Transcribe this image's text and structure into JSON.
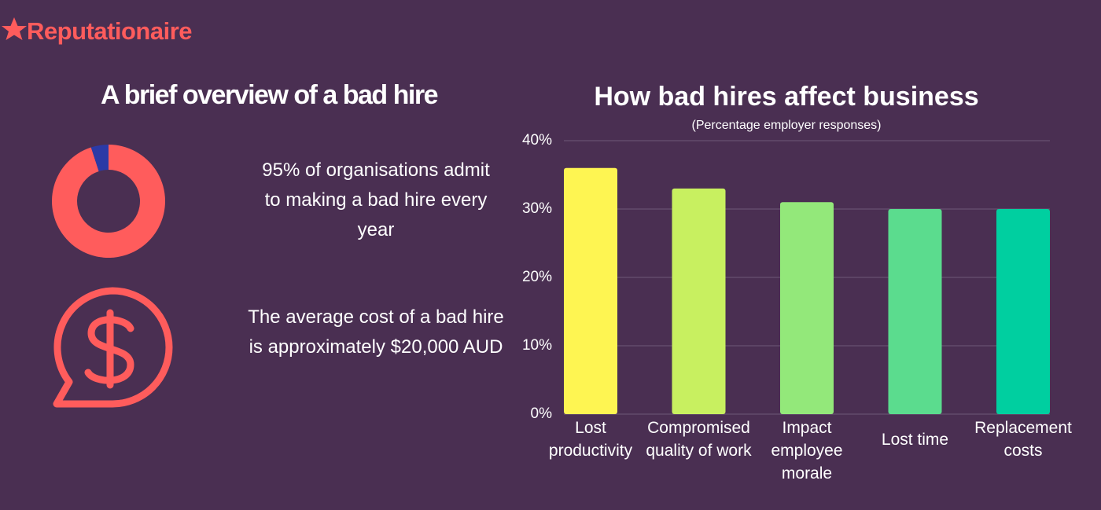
{
  "logo": "Reputationaire",
  "left_title": "A brief overview of a bad hire",
  "facts": [
    "95% of organisations admit to making a bad hire every year",
    "The average cost of a bad hire is approximately $20,000 AUD"
  ],
  "chart_data": [
    {
      "type": "donut",
      "values": [
        95,
        5
      ],
      "colors": [
        "#ff5c5c",
        "#2b3aa6"
      ]
    },
    {
      "type": "bar",
      "title": "How bad hires affect business",
      "subtitle": "(Percentage employer responses)",
      "categories": [
        "Lost productivity",
        "Compromised quality of work",
        "Impact employee morale",
        "Lost time",
        "Replacement costs"
      ],
      "values": [
        36,
        33,
        31,
        30,
        30
      ],
      "colors": [
        "#fef552",
        "#c8f060",
        "#93e87a",
        "#5bdc8e",
        "#00cfa0"
      ],
      "ylim": [
        0,
        40
      ],
      "yticks": [
        {
          "value": 0,
          "label": "0%"
        },
        {
          "value": 10,
          "label": "10%"
        },
        {
          "value": 20,
          "label": "20%"
        },
        {
          "value": 30,
          "label": "30%"
        },
        {
          "value": 40,
          "label": "40%"
        }
      ],
      "grid": true
    }
  ]
}
